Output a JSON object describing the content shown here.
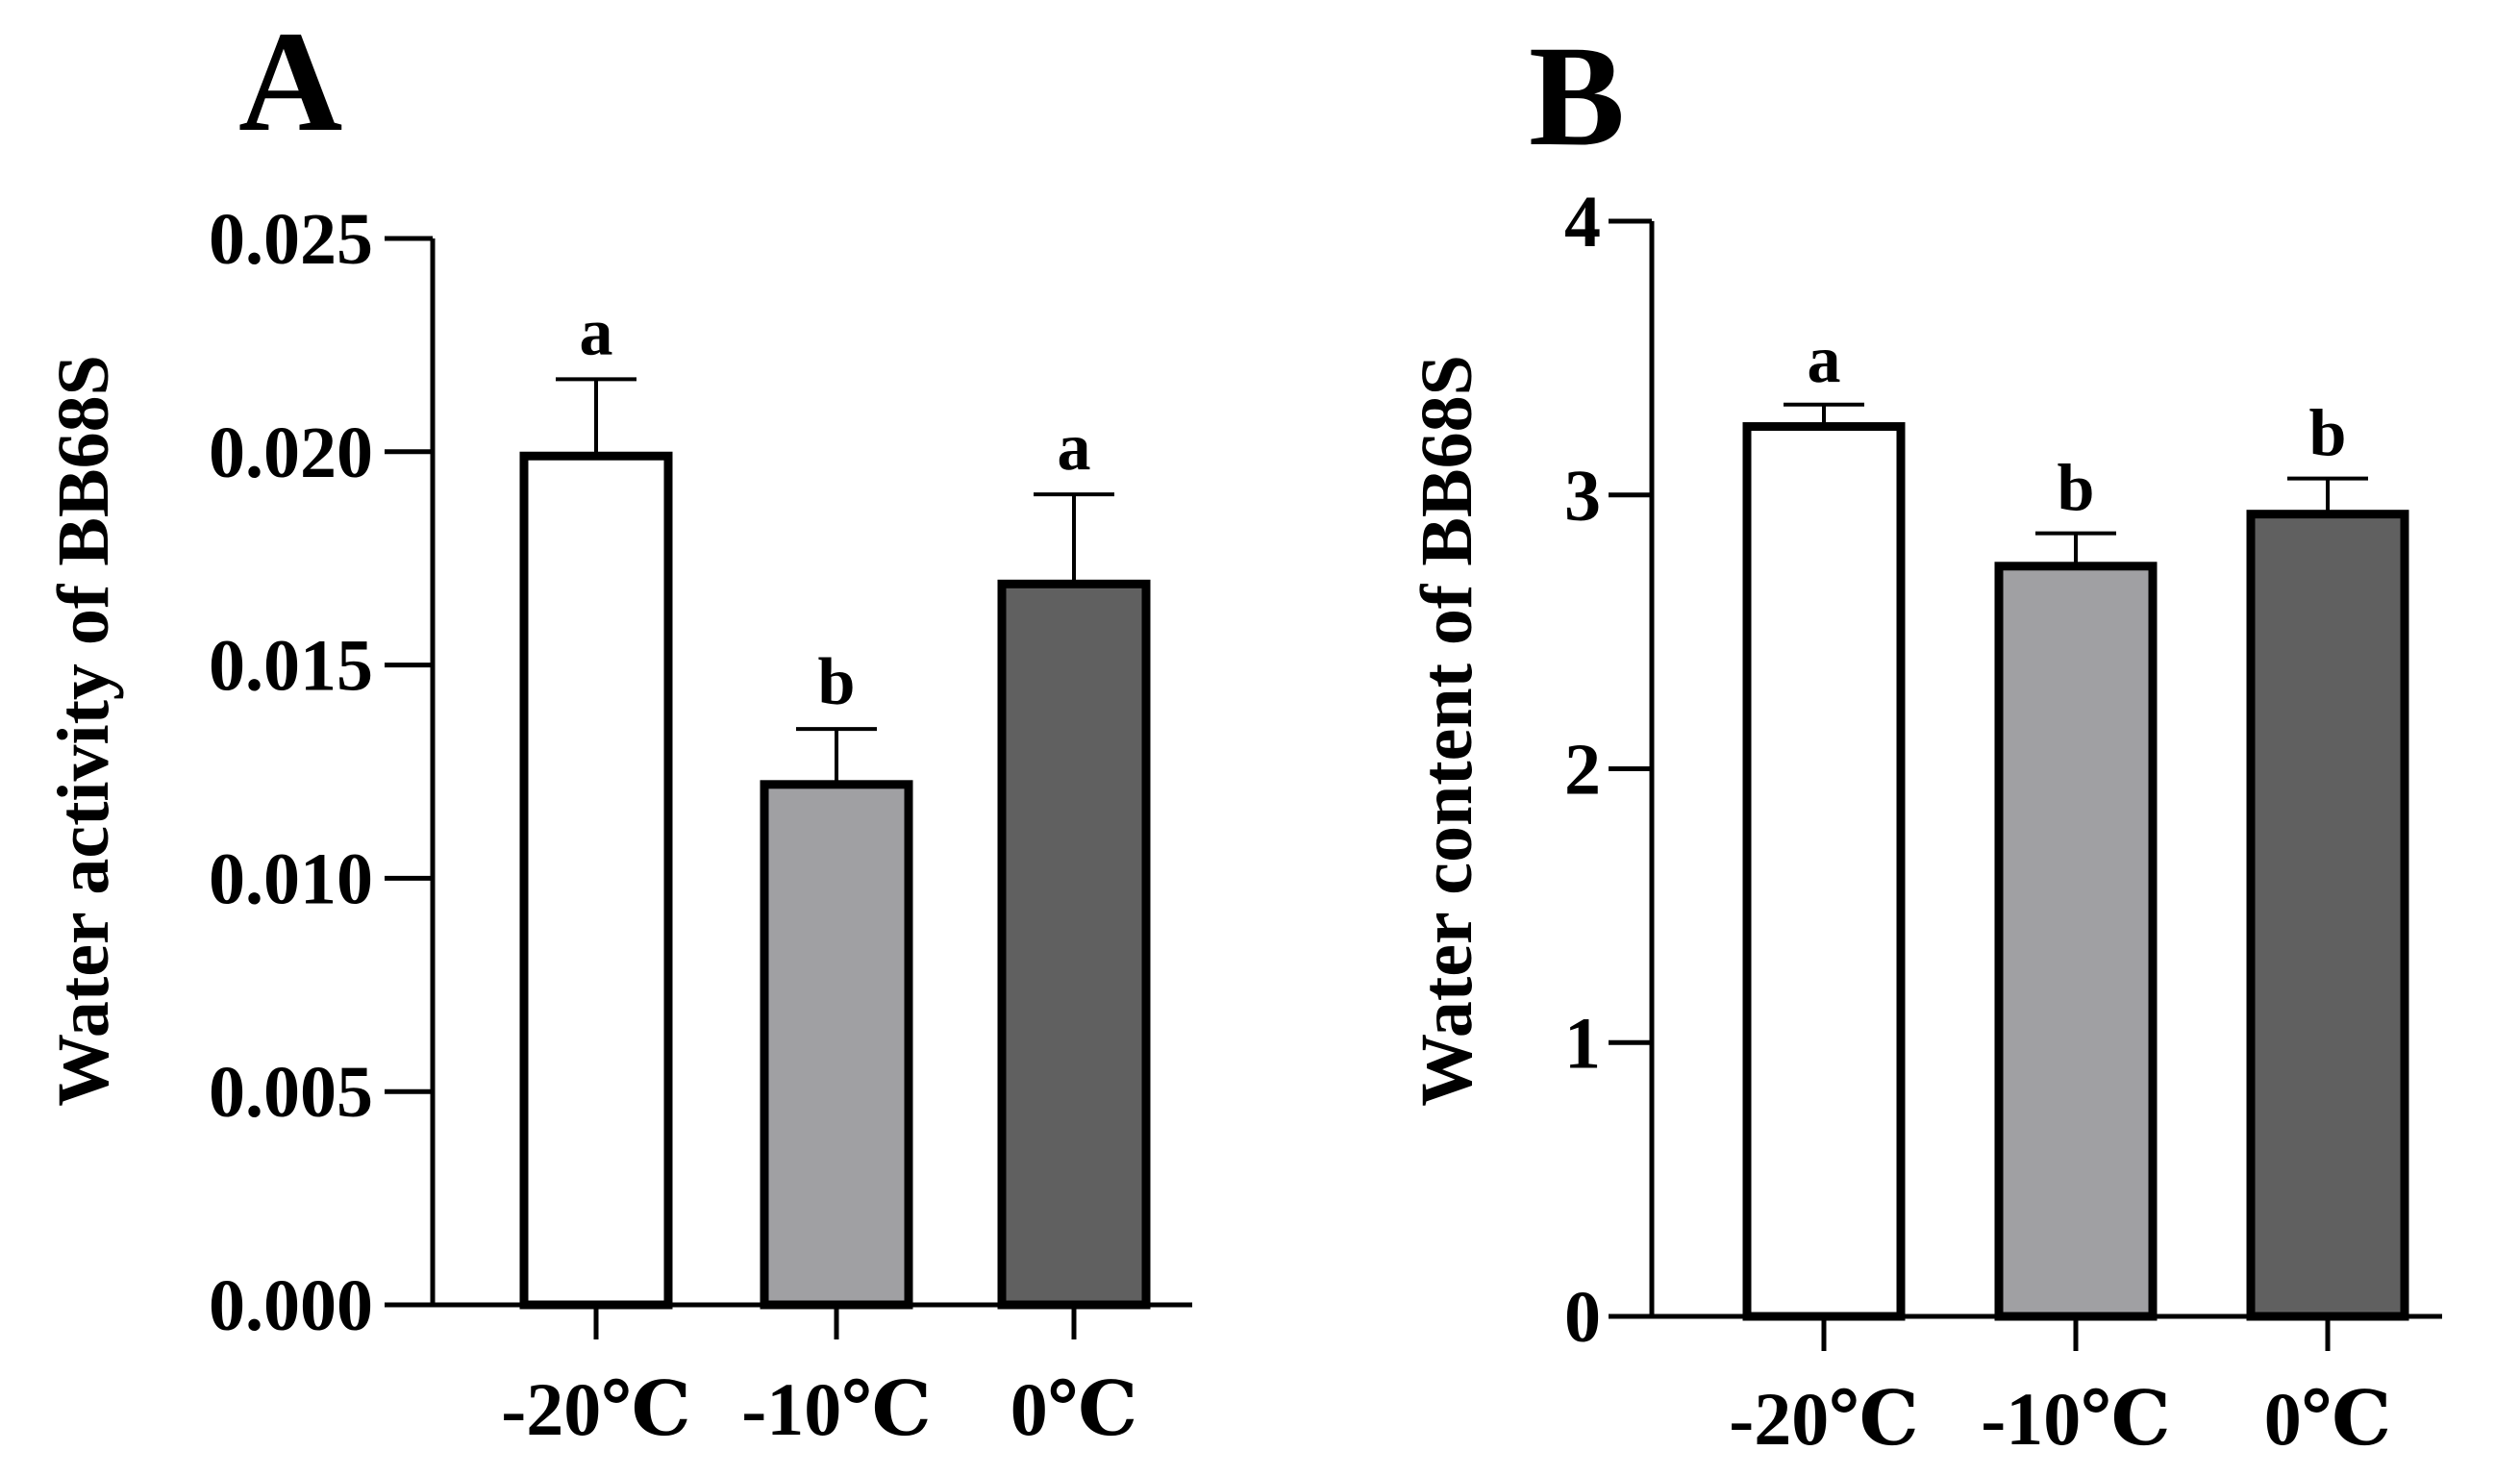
{
  "figure": {
    "panels": [
      "A",
      "B"
    ]
  },
  "chart_data": [
    {
      "panel": "A",
      "type": "bar",
      "title": "",
      "ylabel": "Water activity of  BB68S",
      "xlabel": "",
      "ylim": [
        0,
        0.025
      ],
      "yticks": [
        0,
        0.005,
        0.01,
        0.015,
        0.02,
        0.025
      ],
      "ytick_labels": [
        "0.000",
        "0.005",
        "0.010",
        "0.015",
        "0.020",
        "0.025"
      ],
      "categories": [
        "-20℃",
        "-10℃",
        "0℃"
      ],
      "values": [
        0.0199,
        0.0122,
        0.0169
      ],
      "errors": [
        0.0018,
        0.0013,
        0.0021
      ],
      "significance": [
        "a",
        "b",
        "a"
      ],
      "colors": [
        "#ffffff",
        "#a0a0a3",
        "#606060"
      ]
    },
    {
      "panel": "B",
      "type": "bar",
      "title": "",
      "ylabel": "Water content of  BB68S",
      "xlabel": "",
      "ylim": [
        0,
        4
      ],
      "yticks": [
        0,
        1,
        2,
        3,
        4
      ],
      "ytick_labels": [
        "0",
        "1",
        "2",
        "3",
        "4"
      ],
      "categories": [
        "-20℃",
        "-10℃",
        "0℃"
      ],
      "values": [
        3.25,
        2.74,
        2.93
      ],
      "errors": [
        0.08,
        0.12,
        0.13
      ],
      "significance": [
        "a",
        "b",
        "b"
      ],
      "colors": [
        "#ffffff",
        "#a0a0a3",
        "#606060"
      ]
    }
  ]
}
